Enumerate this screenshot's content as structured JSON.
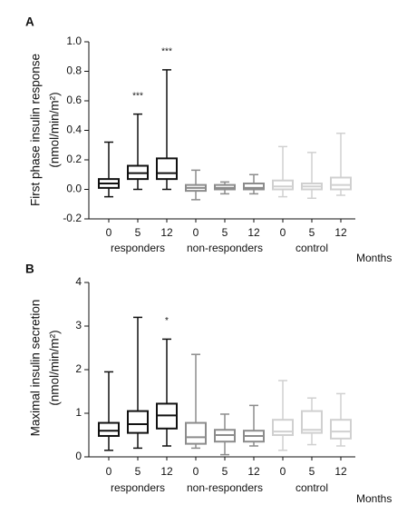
{
  "chart_data": [
    {
      "type": "box",
      "panel_label": "A",
      "y_label": [
        "First phase insulin response",
        "(nmol/min/m²)"
      ],
      "x_unit_label": "Months",
      "ylim": [
        -0.2,
        1.0
      ],
      "yticks": [
        -0.2,
        {
          "value": 0,
          "label": "0.0"
        },
        0.2,
        0.4,
        0.6,
        0.8,
        {
          "value": 1,
          "label": "1.0"
        }
      ],
      "groups": [
        {
          "name": "responders",
          "color": "#111111",
          "categories": [
            "0",
            "5",
            "12"
          ],
          "boxes": [
            {
              "min": -0.05,
              "q1": 0.01,
              "median": 0.04,
              "q3": 0.07,
              "max": 0.32
            },
            {
              "min": 0.0,
              "q1": 0.07,
              "median": 0.11,
              "q3": 0.16,
              "max": 0.51,
              "annotation": "***"
            },
            {
              "min": 0.0,
              "q1": 0.07,
              "median": 0.11,
              "q3": 0.21,
              "max": 0.81,
              "annotation": "***"
            }
          ]
        },
        {
          "name": "non-responders",
          "color": "#8c8c8c",
          "categories": [
            "0",
            "5",
            "12"
          ],
          "boxes": [
            {
              "min": -0.07,
              "q1": -0.01,
              "median": 0.01,
              "q3": 0.03,
              "max": 0.13
            },
            {
              "min": -0.03,
              "q1": 0.0,
              "median": 0.01,
              "q3": 0.03,
              "max": 0.05
            },
            {
              "min": -0.03,
              "q1": 0.0,
              "median": 0.01,
              "q3": 0.04,
              "max": 0.1
            }
          ]
        },
        {
          "name": "control",
          "color": "#d0d0d0",
          "categories": [
            "0",
            "5",
            "12"
          ],
          "boxes": [
            {
              "min": -0.05,
              "q1": 0.0,
              "median": 0.02,
              "q3": 0.06,
              "max": 0.29
            },
            {
              "min": -0.06,
              "q1": 0.0,
              "median": 0.02,
              "q3": 0.04,
              "max": 0.25
            },
            {
              "min": -0.04,
              "q1": 0.0,
              "median": 0.03,
              "q3": 0.08,
              "max": 0.38
            }
          ]
        }
      ]
    },
    {
      "type": "box",
      "panel_label": "B",
      "y_label": [
        "Maximal insulin secretion",
        "(nmol/min/m²)"
      ],
      "x_unit_label": "Months",
      "ylim": [
        0,
        4
      ],
      "yticks": [
        0,
        1,
        2,
        3,
        4
      ],
      "groups": [
        {
          "name": "responders",
          "color": "#111111",
          "categories": [
            "0",
            "5",
            "12"
          ],
          "boxes": [
            {
              "min": 0.15,
              "q1": 0.48,
              "median": 0.6,
              "q3": 0.78,
              "max": 1.95
            },
            {
              "min": 0.2,
              "q1": 0.55,
              "median": 0.75,
              "q3": 1.05,
              "max": 3.2
            },
            {
              "min": 0.25,
              "q1": 0.65,
              "median": 0.95,
              "q3": 1.22,
              "max": 2.7,
              "annotation": "*"
            }
          ]
        },
        {
          "name": "non-responders",
          "color": "#8c8c8c",
          "categories": [
            "0",
            "5",
            "12"
          ],
          "boxes": [
            {
              "min": 0.2,
              "q1": 0.3,
              "median": 0.45,
              "q3": 0.78,
              "max": 2.35
            },
            {
              "min": 0.05,
              "q1": 0.35,
              "median": 0.5,
              "q3": 0.62,
              "max": 0.98
            },
            {
              "min": 0.25,
              "q1": 0.35,
              "median": 0.48,
              "q3": 0.6,
              "max": 1.18
            }
          ]
        },
        {
          "name": "control",
          "color": "#d0d0d0",
          "categories": [
            "0",
            "5",
            "12"
          ],
          "boxes": [
            {
              "min": 0.15,
              "q1": 0.5,
              "median": 0.58,
              "q3": 0.85,
              "max": 1.75
            },
            {
              "min": 0.28,
              "q1": 0.55,
              "median": 0.62,
              "q3": 1.05,
              "max": 1.35
            },
            {
              "min": 0.25,
              "q1": 0.42,
              "median": 0.58,
              "q3": 0.85,
              "max": 1.45
            }
          ]
        }
      ]
    }
  ]
}
